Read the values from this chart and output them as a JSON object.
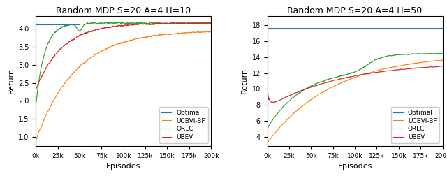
{
  "title1": "Random MDP S=20 A=4 H=10",
  "title2": "Random MDP S=20 A=4 H=50",
  "xlabel": "Episodes",
  "ylabel": "Return",
  "xlim": [
    0,
    200000
  ],
  "xticks": [
    0,
    25000,
    50000,
    75000,
    100000,
    125000,
    150000,
    175000,
    200000
  ],
  "xtick_labels": [
    "0k",
    "25k",
    "50k",
    "75k",
    "100k",
    "125k",
    "150k",
    "175k",
    "200k"
  ],
  "colors": {
    "Optimal": "#1f77b4",
    "UCBVI-BF": "#ff7f0e",
    "ORLC": "#2ca02c",
    "UBEV": "#d62728"
  },
  "plot1": {
    "ylim": [
      0.75,
      4.35
    ],
    "yticks": [
      1.0,
      1.5,
      2.0,
      2.5,
      3.0,
      3.5,
      4.0
    ],
    "optimal": 4.11,
    "optimal_x_end": 50000
  },
  "plot2": {
    "ylim": [
      2.8,
      19.2
    ],
    "yticks": [
      4,
      6,
      8,
      10,
      12,
      14,
      16,
      18
    ],
    "optimal": 17.6
  }
}
